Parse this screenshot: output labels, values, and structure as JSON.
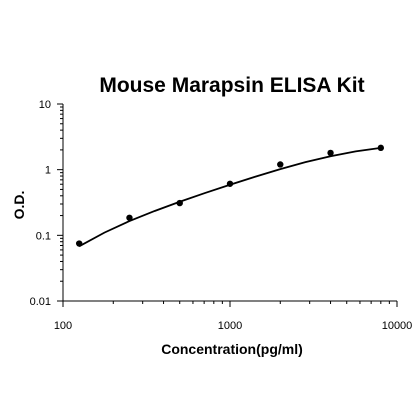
{
  "chart_data": {
    "type": "scatter",
    "title": "Mouse Marapsin ELISA Kit",
    "xlabel": "Concentration(pg/ml)",
    "ylabel": "O.D.",
    "xscale": "log",
    "yscale": "log",
    "xlim": [
      100,
      10000
    ],
    "ylim": [
      0.01,
      10
    ],
    "xticks": [
      "100",
      "1000",
      "10000"
    ],
    "yticks": [
      "0.01",
      "0.1",
      "1",
      "10"
    ],
    "grid": false,
    "legend": "none",
    "points": [
      {
        "x": 125,
        "y": 0.075
      },
      {
        "x": 250,
        "y": 0.185
      },
      {
        "x": 500,
        "y": 0.31
      },
      {
        "x": 1000,
        "y": 0.61
      },
      {
        "x": 2000,
        "y": 1.2
      },
      {
        "x": 4000,
        "y": 1.8
      },
      {
        "x": 8000,
        "y": 2.15
      }
    ],
    "fit_curve": [
      {
        "x": 125,
        "y": 0.068
      },
      {
        "x": 177,
        "y": 0.11
      },
      {
        "x": 250,
        "y": 0.165
      },
      {
        "x": 354,
        "y": 0.235
      },
      {
        "x": 500,
        "y": 0.325
      },
      {
        "x": 707,
        "y": 0.44
      },
      {
        "x": 1000,
        "y": 0.59
      },
      {
        "x": 1414,
        "y": 0.78
      },
      {
        "x": 2000,
        "y": 1.02
      },
      {
        "x": 2828,
        "y": 1.3
      },
      {
        "x": 4000,
        "y": 1.6
      },
      {
        "x": 5657,
        "y": 1.9
      },
      {
        "x": 8000,
        "y": 2.15
      }
    ],
    "colors": {
      "marker": "#000000",
      "line": "#000000",
      "axis": "#000000"
    }
  }
}
